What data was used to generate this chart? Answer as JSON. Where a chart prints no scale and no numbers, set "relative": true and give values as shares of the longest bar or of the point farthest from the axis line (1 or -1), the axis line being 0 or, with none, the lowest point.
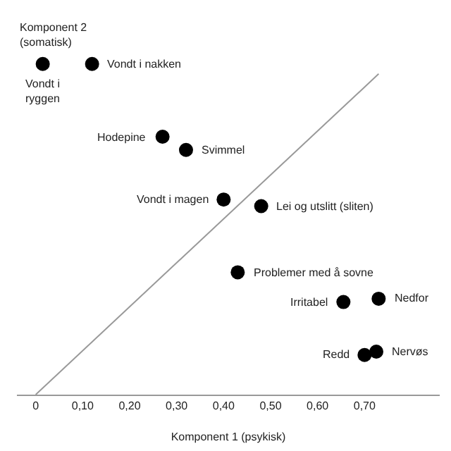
{
  "chart_data": {
    "type": "scatter",
    "relative": true,
    "xlabel": "Komponent 1 (psykisk)",
    "ylabel": "Komponent 2 (somatisk)",
    "xlim": [
      -0.04,
      0.86
    ],
    "xticks": [
      {
        "value": 0,
        "label": "0"
      },
      {
        "value": 0.1,
        "label": "0,10"
      },
      {
        "value": 0.2,
        "label": "0,20"
      },
      {
        "value": 0.3,
        "label": "0,30"
      },
      {
        "value": 0.4,
        "label": "0,40"
      },
      {
        "value": 0.5,
        "label": "0,50"
      },
      {
        "value": 0.6,
        "label": "0,60"
      },
      {
        "value": 0.7,
        "label": "0,70"
      }
    ],
    "marker": "circle",
    "series": [
      {
        "type": "line",
        "marker": "none",
        "color": "#999999",
        "x": [
          0,
          0.73
        ],
        "values": [
          0,
          0.97
        ]
      },
      {
        "color": "#000000",
        "x": [
          0.015,
          0.12,
          0.27,
          0.32,
          0.4,
          0.48,
          0.43,
          0.655,
          0.73,
          0.7,
          0.725
        ],
        "values": [
          1.0,
          1.0,
          0.78,
          0.74,
          0.59,
          0.57,
          0.37,
          0.28,
          0.29,
          0.12,
          0.13
        ]
      }
    ],
    "annotations": [
      {
        "text": "Vondt i\nryggen",
        "x": 0.015,
        "y": 1.0
      },
      {
        "text": "Vondt i nakken",
        "x": 0.12,
        "y": 1.0
      },
      {
        "text": "Hodepine",
        "x": 0.27,
        "y": 0.78
      },
      {
        "text": "Svimmel",
        "x": 0.32,
        "y": 0.74
      },
      {
        "text": "Vondt i magen",
        "x": 0.4,
        "y": 0.59
      },
      {
        "text": "Lei og utslitt (sliten)",
        "x": 0.48,
        "y": 0.57
      },
      {
        "text": "Problemer med å sovne",
        "x": 0.43,
        "y": 0.37
      },
      {
        "text": "Irritabel",
        "x": 0.655,
        "y": 0.28
      },
      {
        "text": "Nedfor",
        "x": 0.73,
        "y": 0.29
      },
      {
        "text": "Redd",
        "x": 0.7,
        "y": 0.12
      },
      {
        "text": "Nervøs",
        "x": 0.725,
        "y": 0.13
      }
    ]
  }
}
